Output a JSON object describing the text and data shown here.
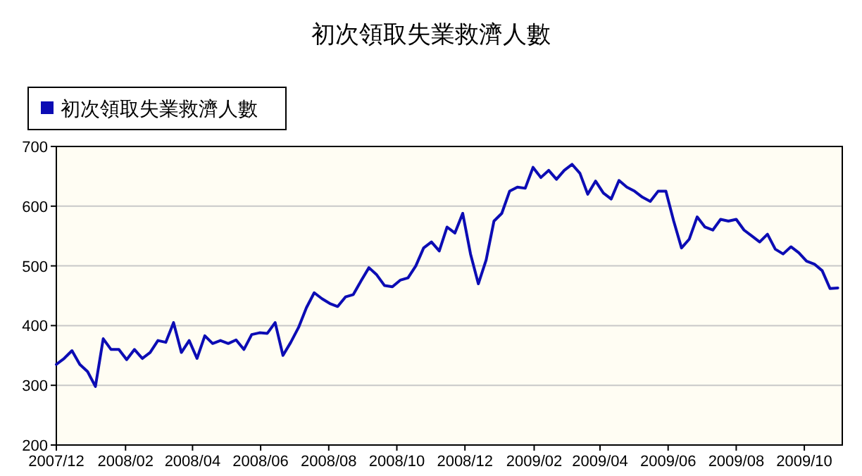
{
  "chart_data": {
    "type": "line",
    "title": "初次領取失業救濟人數",
    "x": [
      "2007-12-01",
      "2007-12-08",
      "2007-12-15",
      "2007-12-22",
      "2007-12-29",
      "2008-01-05",
      "2008-01-12",
      "2008-01-19",
      "2008-01-26",
      "2008-02-02",
      "2008-02-09",
      "2008-02-16",
      "2008-02-23",
      "2008-03-01",
      "2008-03-08",
      "2008-03-15",
      "2008-03-22",
      "2008-03-29",
      "2008-04-05",
      "2008-04-12",
      "2008-04-19",
      "2008-04-26",
      "2008-05-03",
      "2008-05-10",
      "2008-05-17",
      "2008-05-24",
      "2008-05-31",
      "2008-06-07",
      "2008-06-14",
      "2008-06-21",
      "2008-06-28",
      "2008-07-05",
      "2008-07-12",
      "2008-07-19",
      "2008-07-26",
      "2008-08-02",
      "2008-08-09",
      "2008-08-16",
      "2008-08-23",
      "2008-08-30",
      "2008-09-06",
      "2008-09-13",
      "2008-09-20",
      "2008-09-27",
      "2008-10-04",
      "2008-10-11",
      "2008-10-18",
      "2008-10-25",
      "2008-11-01",
      "2008-11-08",
      "2008-11-15",
      "2008-11-22",
      "2008-11-29",
      "2008-12-06",
      "2008-12-13",
      "2008-12-20",
      "2008-12-27",
      "2009-01-03",
      "2009-01-10",
      "2009-01-17",
      "2009-01-24",
      "2009-01-31",
      "2009-02-07",
      "2009-02-14",
      "2009-02-21",
      "2009-02-28",
      "2009-03-07",
      "2009-03-14",
      "2009-03-21",
      "2009-03-28",
      "2009-04-04",
      "2009-04-11",
      "2009-04-18",
      "2009-04-25",
      "2009-05-02",
      "2009-05-09",
      "2009-05-16",
      "2009-05-23",
      "2009-05-30",
      "2009-06-06",
      "2009-06-13",
      "2009-06-20",
      "2009-06-27",
      "2009-07-04",
      "2009-07-11",
      "2009-07-18",
      "2009-07-25",
      "2009-08-01",
      "2009-08-08",
      "2009-08-15",
      "2009-08-22",
      "2009-08-29",
      "2009-09-05",
      "2009-09-12",
      "2009-09-19",
      "2009-09-26",
      "2009-10-03",
      "2009-10-10",
      "2009-10-17",
      "2009-10-24",
      "2009-10-31"
    ],
    "series": [
      {
        "name": "初次領取失業救濟人數",
        "color": "#0c0cb4",
        "values": [
          335,
          345,
          358,
          335,
          323,
          298,
          378,
          360,
          360,
          343,
          360,
          345,
          355,
          375,
          372,
          405,
          355,
          375,
          345,
          383,
          370,
          375,
          370,
          376,
          360,
          385,
          388,
          387,
          405,
          350,
          372,
          397,
          430,
          455,
          445,
          437,
          432,
          448,
          452,
          475,
          497,
          485,
          467,
          465,
          476,
          480,
          500,
          530,
          540,
          525,
          565,
          555,
          588,
          520,
          470,
          510,
          575,
          588,
          625,
          632,
          630,
          665,
          648,
          660,
          645,
          660,
          670,
          655,
          620,
          642,
          622,
          612,
          643,
          632,
          625,
          615,
          608,
          625,
          625,
          575,
          530,
          545,
          582,
          565,
          560,
          578,
          575,
          578,
          560,
          550,
          540,
          553,
          528,
          520,
          532,
          522,
          508,
          503,
          492,
          462,
          463
        ]
      }
    ],
    "xlim": [
      "2007-12-01",
      "2009-11-04"
    ],
    "xticks": [
      {
        "value": "2007-12",
        "label": "2007/12"
      },
      {
        "value": "2008-02",
        "label": "2008/02"
      },
      {
        "value": "2008-04",
        "label": "2008/04"
      },
      {
        "value": "2008-06",
        "label": "2008/06"
      },
      {
        "value": "2008-08",
        "label": "2008/08"
      },
      {
        "value": "2008-10",
        "label": "2008/10"
      },
      {
        "value": "2008-12",
        "label": "2008/12"
      },
      {
        "value": "2009-02",
        "label": "2009/02"
      },
      {
        "value": "2009-04",
        "label": "2009/04"
      },
      {
        "value": "2009-06",
        "label": "2009/06"
      },
      {
        "value": "2009-08",
        "label": "2009/08"
      },
      {
        "value": "2009-10",
        "label": "2009/10"
      }
    ],
    "ylim": [
      200,
      700
    ],
    "yticks": [
      200,
      300,
      400,
      500,
      600,
      700
    ],
    "grid": "y",
    "legend": "top left"
  }
}
